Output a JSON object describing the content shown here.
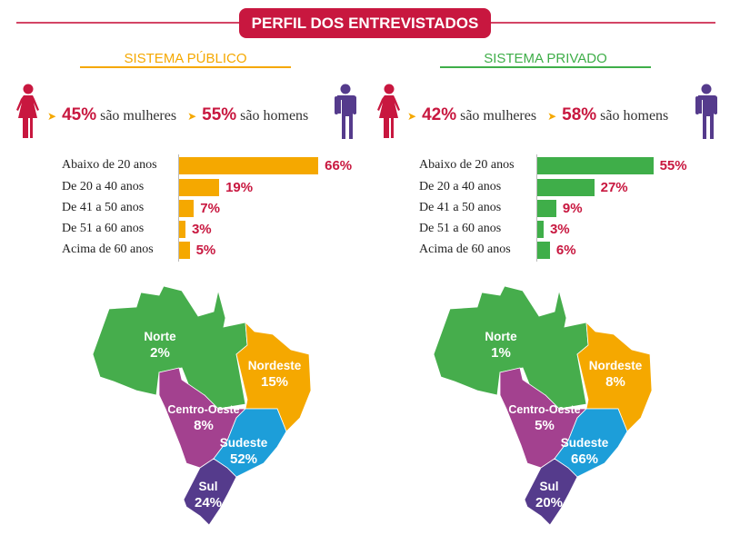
{
  "title": "PERFIL DOS ENTREVISTADOS",
  "colors": {
    "header": "#c8173f",
    "publico": "#f5a800",
    "privado": "#3fae49",
    "norte": "#46ad4c",
    "nordeste": "#f5a800",
    "centro_oeste": "#a3418f",
    "sudeste": "#1d9ed9",
    "sul": "#553b8c",
    "woman": "#c8173f",
    "man": "#553b8c"
  },
  "panels": [
    {
      "title": "SISTEMA PÚBLICO",
      "women_pct": "45%",
      "women_label": "são mulheres",
      "men_pct": "55%",
      "men_label": "são homens"
    },
    {
      "title": "SISTEMA PRIVADO",
      "women_pct": "42%",
      "women_label": "são mulheres",
      "men_pct": "58%",
      "men_label": "são homens"
    }
  ],
  "chart_data": [
    {
      "type": "bar",
      "orientation": "horizontal",
      "title": "",
      "categories": [
        "Abaixo de 20 anos",
        "De 20 a 40 anos",
        "De 41 a 50 anos",
        "De 51 a 60 anos",
        "Acima de 60 anos"
      ],
      "values": [
        66,
        19,
        7,
        3,
        5
      ],
      "labels": [
        "66%",
        "19%",
        "7%",
        "3%",
        "5%"
      ],
      "unit": "%"
    },
    {
      "type": "bar",
      "orientation": "horizontal",
      "title": "",
      "categories": [
        "Abaixo de 20 anos",
        "De 20 a 40 anos",
        "De 41 a 50 anos",
        "De 51 a 60 anos",
        "Acima de 60 anos"
      ],
      "values": [
        55,
        27,
        9,
        3,
        6
      ],
      "labels": [
        "55%",
        "27%",
        "9%",
        "3%",
        "6%"
      ],
      "unit": "%"
    },
    {
      "type": "map",
      "regions": [
        {
          "name": "Norte",
          "value": "2%"
        },
        {
          "name": "Nordeste",
          "value": "15%"
        },
        {
          "name": "Centro-Oeste",
          "value": "8%"
        },
        {
          "name": "Sudeste",
          "value": "52%"
        },
        {
          "name": "Sul",
          "value": "24%"
        }
      ]
    },
    {
      "type": "map",
      "regions": [
        {
          "name": "Norte",
          "value": "1%"
        },
        {
          "name": "Nordeste",
          "value": "8%"
        },
        {
          "name": "Centro-Oeste",
          "value": "5%"
        },
        {
          "name": "Sudeste",
          "value": "66%"
        },
        {
          "name": "Sul",
          "value": "20%"
        }
      ]
    }
  ]
}
